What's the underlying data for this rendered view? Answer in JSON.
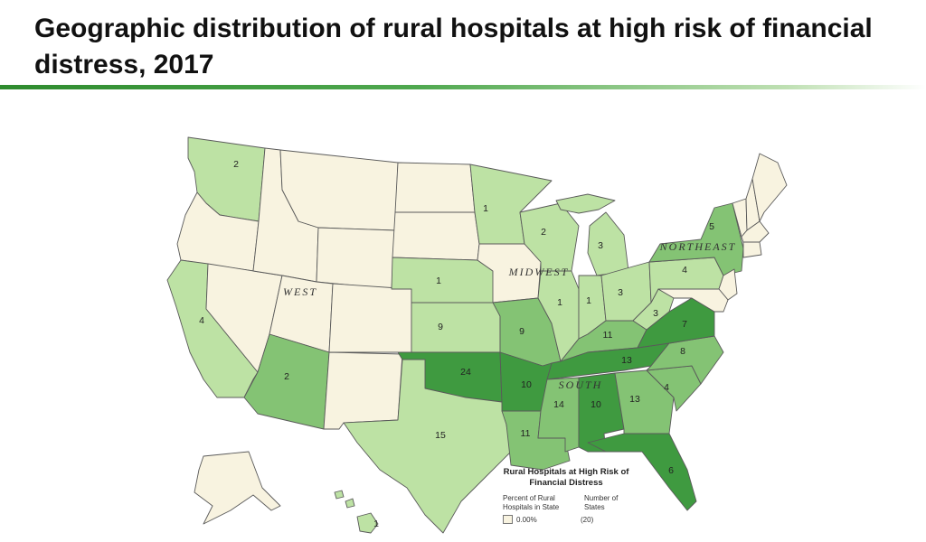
{
  "title": "Geographic distribution of rural hospitals at high risk of financial distress, 2017",
  "colors": {
    "zero": "#f8f3e0",
    "low": "#bde2a4",
    "mid": "#84c374",
    "high": "#3f9a40",
    "border": "#5a5a5a",
    "rule": "#2e8b2e"
  },
  "regions": [
    "WEST",
    "MIDWEST",
    "NORTHEAST",
    "SOUTH"
  ],
  "states": {
    "WA": {
      "count": "2",
      "level": "low"
    },
    "OR": {
      "count": "",
      "level": "zero"
    },
    "CA": {
      "count": "4",
      "level": "low"
    },
    "NV": {
      "count": "",
      "level": "zero"
    },
    "ID": {
      "count": "",
      "level": "zero"
    },
    "MT": {
      "count": "",
      "level": "zero"
    },
    "WY": {
      "count": "",
      "level": "zero"
    },
    "UT": {
      "count": "",
      "level": "zero"
    },
    "AZ": {
      "count": "2",
      "level": "mid"
    },
    "CO": {
      "count": "",
      "level": "zero"
    },
    "NM": {
      "count": "",
      "level": "zero"
    },
    "ND": {
      "count": "",
      "level": "zero"
    },
    "SD": {
      "count": "",
      "level": "zero"
    },
    "NE": {
      "count": "1",
      "level": "low"
    },
    "KS": {
      "count": "9",
      "level": "low"
    },
    "OK": {
      "count": "24",
      "level": "high"
    },
    "TX": {
      "count": "15",
      "level": "low"
    },
    "MN": {
      "count": "1",
      "level": "low"
    },
    "IA": {
      "count": "",
      "level": "zero"
    },
    "MO": {
      "count": "9",
      "level": "mid"
    },
    "AR": {
      "count": "10",
      "level": "high"
    },
    "LA": {
      "count": "11",
      "level": "mid"
    },
    "WI": {
      "count": "2",
      "level": "low"
    },
    "IL": {
      "count": "1",
      "level": "low"
    },
    "MI": {
      "count": "3",
      "level": "low"
    },
    "IN": {
      "count": "1",
      "level": "low"
    },
    "OH": {
      "count": "3",
      "level": "low"
    },
    "KY": {
      "count": "11",
      "level": "mid"
    },
    "TN": {
      "count": "13",
      "level": "high"
    },
    "MS": {
      "count": "14",
      "level": "mid"
    },
    "AL": {
      "count": "10",
      "level": "high"
    },
    "GA": {
      "count": "13",
      "level": "mid"
    },
    "FL": {
      "count": "6",
      "level": "high"
    },
    "SC": {
      "count": "4",
      "level": "mid"
    },
    "NC": {
      "count": "8",
      "level": "mid"
    },
    "VA": {
      "count": "7",
      "level": "high"
    },
    "WV": {
      "count": "3",
      "level": "low"
    },
    "PA": {
      "count": "4",
      "level": "low"
    },
    "NY": {
      "count": "5",
      "level": "mid"
    },
    "NJ": {
      "count": "",
      "level": "zero"
    },
    "VT": {
      "count": "",
      "level": "zero"
    },
    "NH": {
      "count": "",
      "level": "zero"
    },
    "ME": {
      "count": "",
      "level": "zero"
    },
    "MA": {
      "count": "",
      "level": "zero"
    },
    "CT": {
      "count": "",
      "level": "zero"
    },
    "MD": {
      "count": "",
      "level": "zero"
    },
    "AK": {
      "count": "",
      "level": "zero"
    },
    "HI": {
      "count": "1",
      "level": "low"
    }
  },
  "legend": {
    "title": "Rural Hospitals at High Risk of Financial Distress",
    "col_percent": "Percent of Rural Hospitals in State",
    "col_states": "Number of States",
    "rows": [
      {
        "label": "0.00%",
        "states": "(20)",
        "level": "zero"
      }
    ]
  }
}
